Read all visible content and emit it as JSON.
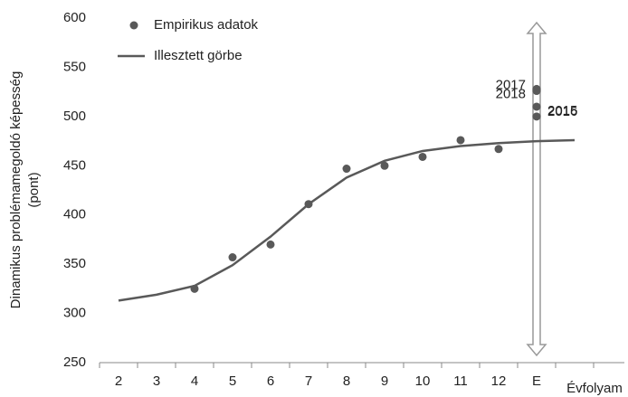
{
  "chart_data": {
    "type": "scatter_line",
    "y_label": [
      "Dinamikus problémamegoldó képesség",
      "(pont)"
    ],
    "x_label": "Évfolyam",
    "categories": [
      "2",
      "3",
      "4",
      "5",
      "6",
      "7",
      "8",
      "9",
      "10",
      "11",
      "12",
      "E",
      null
    ],
    "ylim": [
      250,
      600
    ],
    "yticks": [
      250,
      300,
      350,
      400,
      450,
      500,
      550,
      600
    ],
    "legend": "top-left",
    "series": [
      {
        "name": "Empirikus adatok",
        "kind": "points",
        "color": "#595959",
        "x": [
          "4",
          "5",
          "6",
          "7",
          "8",
          "9",
          "10",
          "11",
          "12",
          "E",
          "E",
          "E",
          "E"
        ],
        "values": [
          325,
          357,
          370,
          411,
          447,
          450,
          459,
          476,
          467,
          528,
          526,
          510,
          500
        ],
        "labels": [
          null,
          null,
          null,
          null,
          null,
          null,
          null,
          null,
          null,
          "2018",
          "2017",
          "2016",
          "2015"
        ]
      },
      {
        "name": "Illesztett görbe",
        "kind": "line",
        "color": "#595959",
        "values": [
          313,
          319,
          328,
          349,
          378,
          411,
          438,
          455,
          465,
          470,
          473,
          475,
          476
        ]
      }
    ]
  }
}
